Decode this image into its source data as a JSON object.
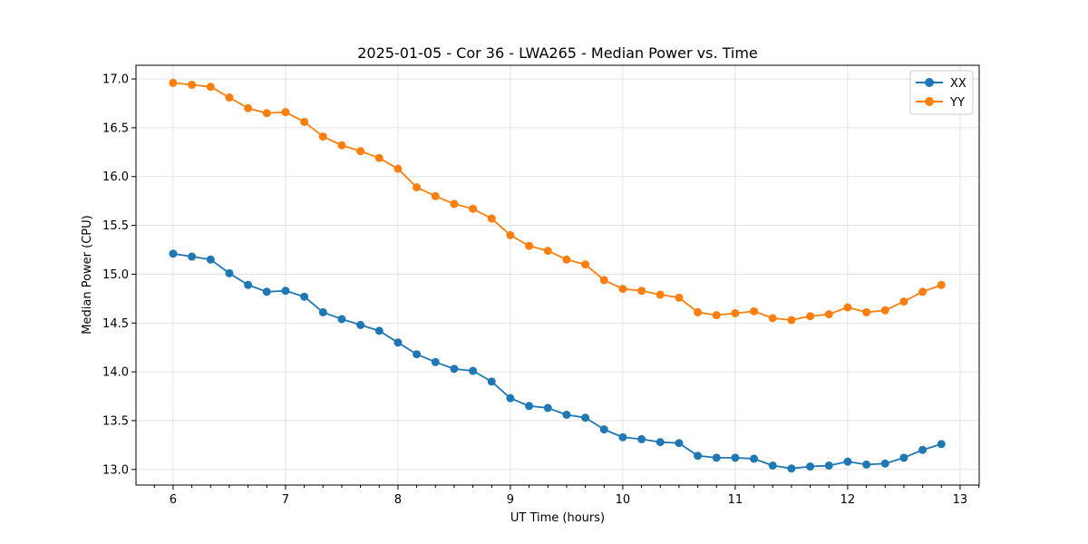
{
  "chart_data": {
    "type": "line",
    "title": "2025-01-05 - Cor 36 - LWA265 - Median Power vs. Time",
    "xlabel": "UT Time (hours)",
    "ylabel": "Median Power (CPU)",
    "xlim": [
      5.67,
      13.17
    ],
    "ylim": [
      12.84,
      17.14
    ],
    "xticks": [
      6,
      7,
      8,
      9,
      10,
      11,
      12,
      13
    ],
    "xtick_labels": [
      "6",
      "7",
      "8",
      "9",
      "10",
      "11",
      "12",
      "13"
    ],
    "yticks": [
      13.0,
      13.5,
      14.0,
      14.5,
      15.0,
      15.5,
      16.0,
      16.5,
      17.0
    ],
    "ytick_labels": [
      "13.0",
      "13.5",
      "14.0",
      "14.5",
      "15.0",
      "15.5",
      "16.0",
      "16.5",
      "17.0"
    ],
    "grid": true,
    "legend_position": "top-right",
    "x": [
      6.0,
      6.1667,
      6.3333,
      6.5,
      6.6667,
      6.8333,
      7.0,
      7.1667,
      7.3333,
      7.5,
      7.6667,
      7.8333,
      8.0,
      8.1667,
      8.3333,
      8.5,
      8.6667,
      8.8333,
      9.0,
      9.1667,
      9.3333,
      9.5,
      9.6667,
      9.8333,
      10.0,
      10.1667,
      10.3333,
      10.5,
      10.6667,
      10.8333,
      11.0,
      11.1667,
      11.3333,
      11.5,
      11.6667,
      11.8333,
      12.0,
      12.1667,
      12.3333,
      12.5,
      12.6667,
      12.8333
    ],
    "series": [
      {
        "name": "XX",
        "color": "#1f77b4",
        "values": [
          15.21,
          15.18,
          15.15,
          15.01,
          14.89,
          14.82,
          14.83,
          14.77,
          14.61,
          14.54,
          14.48,
          14.42,
          14.3,
          14.18,
          14.1,
          14.03,
          14.01,
          13.9,
          13.73,
          13.65,
          13.63,
          13.56,
          13.53,
          13.41,
          13.33,
          13.31,
          13.28,
          13.27,
          13.14,
          13.12,
          13.12,
          13.11,
          13.04,
          13.01,
          13.03,
          13.04,
          13.08,
          13.05,
          13.06,
          13.12,
          13.2,
          13.26
        ]
      },
      {
        "name": "YY",
        "color": "#ff7f0e",
        "values": [
          16.96,
          16.94,
          16.92,
          16.81,
          16.7,
          16.65,
          16.66,
          16.56,
          16.41,
          16.32,
          16.26,
          16.19,
          16.08,
          15.89,
          15.8,
          15.72,
          15.67,
          15.57,
          15.4,
          15.29,
          15.24,
          15.15,
          15.1,
          14.94,
          14.85,
          14.83,
          14.79,
          14.76,
          14.61,
          14.58,
          14.6,
          14.62,
          14.55,
          14.53,
          14.57,
          14.59,
          14.66,
          14.61,
          14.63,
          14.72,
          14.82,
          14.89
        ]
      }
    ]
  }
}
